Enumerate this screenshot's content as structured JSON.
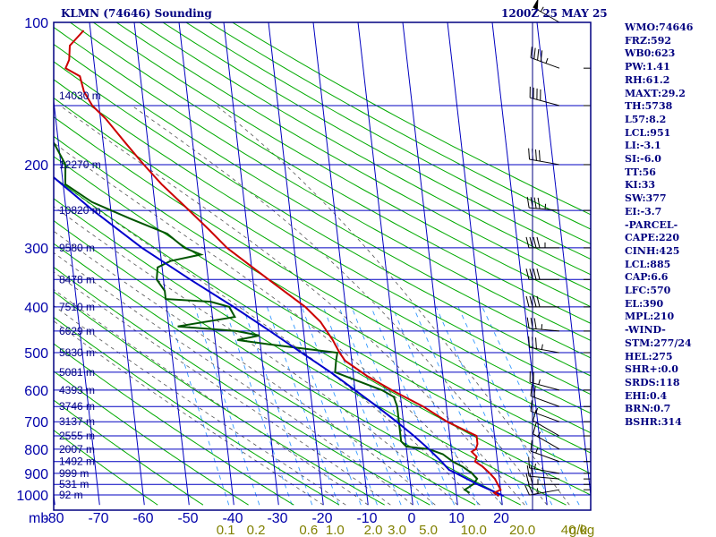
{
  "header": {
    "title": "KLMN (74646) Sounding",
    "valid_time": "1200Z 25 MAY 25"
  },
  "stats": [
    "WMO:74646",
    "FRZ:592",
    "WB0:623",
    "PW:1.41",
    "RH:61.2",
    "MAXT:29.2",
    "TH:5738",
    "L57:8.2",
    "LCL:951",
    "LI:-3.1",
    "SI:-6.0",
    "TT:56",
    "KI:33",
    "SW:377",
    "EI:-3.7",
    "-PARCEL-",
    "CAPE:220",
    "CINH:425",
    "LCL:885",
    "CAP:6.6",
    "LFC:570",
    "EL:390",
    "MPL:210",
    "-WIND-",
    "STM:277/24",
    "HEL:275",
    "SHR+:0.0",
    "SRDS:118",
    "EHI:0.4",
    "BRN:0.7",
    "BSHR:314"
  ],
  "colors": {
    "frame": "#000080",
    "isobar": "#0000c0",
    "isotherm": "#0000c0",
    "dry_adiabat": "#00aa00",
    "moist_adiabat": "#555555",
    "mixing_ratio": "#3399ff",
    "temperature": "#cc0000",
    "dewpoint": "#005500",
    "parcel": "#0000cc",
    "mixing_label": "#808000",
    "wind_barb": "#000000"
  },
  "chart_data": {
    "type": "line",
    "title": "KLMN (74646) Sounding",
    "subtitle": "1200Z 25 MAY 25",
    "xlabel": "",
    "ylabel": "mb",
    "x_unit_label": "g/kg",
    "pressure_ticks": [
      100,
      200,
      300,
      400,
      500,
      600,
      700,
      800,
      900,
      1000
    ],
    "pressure_ylim": [
      1050,
      100
    ],
    "temperature_ticks": [
      -80,
      -70,
      -60,
      -50,
      -40,
      -30,
      -20,
      -10,
      0,
      10,
      20
    ],
    "temperature_xlim": [
      -80,
      40
    ],
    "mixing_ratio_ticks": [
      "0.1",
      "0.2",
      "0.6",
      "1.0",
      "2.0",
      "3.0",
      "5.0",
      "10.0",
      "20.0",
      "40.0"
    ],
    "height_labels": [
      {
        "p": 143,
        "label": "14030 m"
      },
      {
        "p": 200,
        "label": "12270 m"
      },
      {
        "p": 250,
        "label": "10820 m"
      },
      {
        "p": 300,
        "label": "9580 m"
      },
      {
        "p": 350,
        "label": "8478 m"
      },
      {
        "p": 400,
        "label": "7510 m"
      },
      {
        "p": 450,
        "label": "6629 m"
      },
      {
        "p": 500,
        "label": "5830 m"
      },
      {
        "p": 550,
        "label": "5081 m"
      },
      {
        "p": 600,
        "label": "4393 m"
      },
      {
        "p": 650,
        "label": "3746 m"
      },
      {
        "p": 700,
        "label": "3137 m"
      },
      {
        "p": 750,
        "label": "2555 m"
      },
      {
        "p": 800,
        "label": "2007 m"
      },
      {
        "p": 850,
        "label": "1492 m"
      },
      {
        "p": 900,
        "label": "999 m"
      },
      {
        "p": 950,
        "label": "531 m"
      },
      {
        "p": 1000,
        "label": "92 m"
      }
    ],
    "series": [
      {
        "key": "temperature",
        "points": [
          [
            1005,
            19.5
          ],
          [
            990,
            18.5
          ],
          [
            975,
            20.0
          ],
          [
            950,
            19.5
          ],
          [
            925,
            19.0
          ],
          [
            900,
            18.0
          ],
          [
            870,
            16.5
          ],
          [
            850,
            15.0
          ],
          [
            830,
            15.5
          ],
          [
            810,
            14.5
          ],
          [
            800,
            15.5
          ],
          [
            780,
            16.0
          ],
          [
            750,
            16.0
          ],
          [
            700,
            9.8
          ],
          [
            650,
            4.8
          ],
          [
            600,
            -1.8
          ],
          [
            560,
            -7.0
          ],
          [
            520,
            -11.5
          ],
          [
            500,
            -12.5
          ],
          [
            470,
            -13.7
          ],
          [
            430,
            -16.0
          ],
          [
            400,
            -19.0
          ],
          [
            350,
            -26.5
          ],
          [
            300,
            -35.0
          ],
          [
            275,
            -38.5
          ],
          [
            250,
            -42.5
          ],
          [
            220,
            -48.0
          ],
          [
            200,
            -51.5
          ],
          [
            180,
            -55.0
          ],
          [
            160,
            -58.8
          ],
          [
            150,
            -61.5
          ],
          [
            140,
            -63.0
          ],
          [
            130,
            -63.5
          ],
          [
            125,
            -66.5
          ],
          [
            120,
            -65.5
          ],
          [
            112,
            -65.0
          ],
          [
            104,
            -61.5
          ]
        ]
      },
      {
        "key": "dewpoint",
        "points": [
          [
            990,
            13.0
          ],
          [
            975,
            12.0
          ],
          [
            950,
            14.0
          ],
          [
            925,
            15.0
          ],
          [
            900,
            14.0
          ],
          [
            870,
            12.0
          ],
          [
            850,
            10.0
          ],
          [
            820,
            8.0
          ],
          [
            800,
            5.0
          ],
          [
            790,
            0.0
          ],
          [
            770,
            -1.0
          ],
          [
            700,
            -1.0
          ],
          [
            650,
            -1.0
          ],
          [
            620,
            -1.5
          ],
          [
            600,
            -4.0
          ],
          [
            550,
            -14.0
          ],
          [
            520,
            -13.5
          ],
          [
            500,
            -13.0
          ],
          [
            480,
            -28.0
          ],
          [
            470,
            -35.0
          ],
          [
            460,
            -30.0
          ],
          [
            450,
            -35.0
          ],
          [
            440,
            -48.0
          ],
          [
            420,
            -35.0
          ],
          [
            400,
            -36.0
          ],
          [
            390,
            -40.0
          ],
          [
            385,
            -50.0
          ],
          [
            370,
            -50.0
          ],
          [
            350,
            -51.5
          ],
          [
            330,
            -51.0
          ],
          [
            320,
            -48.0
          ],
          [
            310,
            -41.0
          ],
          [
            300,
            -44.5
          ],
          [
            280,
            -48.0
          ],
          [
            260,
            -56.0
          ],
          [
            240,
            -64.0
          ],
          [
            220,
            -69.5
          ],
          [
            200,
            -69.0
          ],
          [
            180,
            -71.0
          ],
          [
            170,
            -75.0
          ],
          [
            160,
            -71.0
          ],
          [
            150,
            -74.0
          ],
          [
            140,
            -79.5
          ],
          [
            130,
            -80.5
          ],
          [
            120,
            -81.0
          ],
          [
            113,
            -75.5
          ],
          [
            110,
            -79.0
          ]
        ]
      },
      {
        "key": "parcel",
        "points": [
          [
            1005,
            20.5
          ],
          [
            950,
            15.0
          ],
          [
            900,
            10.5
          ],
          [
            885,
            9.0
          ],
          [
            850,
            7.5
          ],
          [
            800,
            5.0
          ],
          [
            750,
            2.0
          ],
          [
            700,
            -1.5
          ],
          [
            650,
            -5.5
          ],
          [
            600,
            -10.0
          ],
          [
            550,
            -15.0
          ],
          [
            500,
            -21.0
          ],
          [
            450,
            -27.5
          ],
          [
            400,
            -35.0
          ],
          [
            350,
            -44.0
          ],
          [
            300,
            -54.0
          ],
          [
            250,
            -64.0
          ],
          [
            200,
            -75.0
          ],
          [
            170,
            -81.0
          ],
          [
            150,
            -84.5
          ]
        ]
      }
    ],
    "wind_barbs": [
      {
        "p": 975,
        "dir": 260,
        "speed": 25
      },
      {
        "p": 950,
        "dir": 270,
        "speed": 25
      },
      {
        "p": 925,
        "dir": 275,
        "speed": 20
      },
      {
        "p": 900,
        "dir": 280,
        "speed": 15
      },
      {
        "p": 850,
        "dir": 290,
        "speed": 15
      },
      {
        "p": 800,
        "dir": 300,
        "speed": 15
      },
      {
        "p": 750,
        "dir": 300,
        "speed": 10
      },
      {
        "p": 700,
        "dir": 290,
        "speed": 15
      },
      {
        "p": 650,
        "dir": 290,
        "speed": 20
      },
      {
        "p": 600,
        "dir": 285,
        "speed": 25
      },
      {
        "p": 500,
        "dir": 280,
        "speed": 35
      },
      {
        "p": 450,
        "dir": 275,
        "speed": 35
      },
      {
        "p": 400,
        "dir": 270,
        "speed": 40
      },
      {
        "p": 350,
        "dir": 270,
        "speed": 40
      },
      {
        "p": 300,
        "dir": 270,
        "speed": 45
      },
      {
        "p": 250,
        "dir": 275,
        "speed": 45
      },
      {
        "p": 200,
        "dir": 280,
        "speed": 40
      },
      {
        "p": 150,
        "dir": 285,
        "speed": 40
      },
      {
        "p": 125,
        "dir": 290,
        "speed": 45
      },
      {
        "p": 100,
        "dir": 300,
        "speed": 55
      }
    ]
  }
}
